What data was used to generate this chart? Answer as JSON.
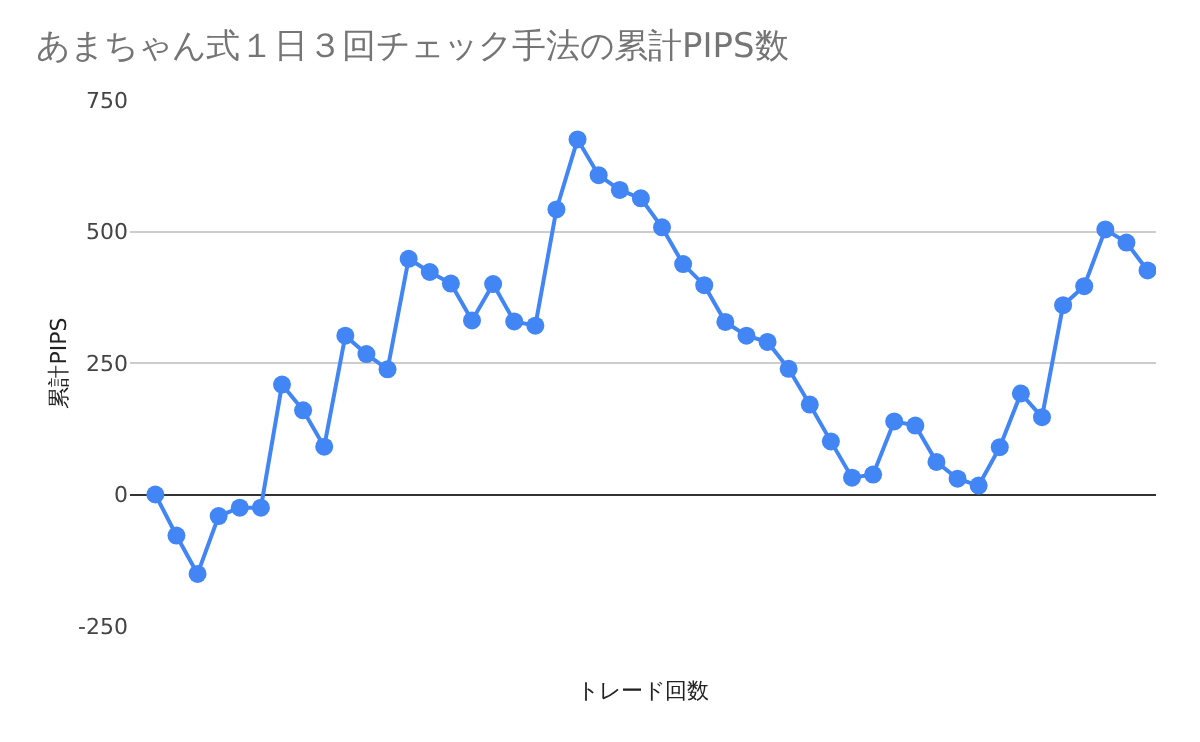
{
  "chart_data": {
    "type": "line",
    "title": "あまちゃん式１日３回チェック手法の累計PIPS数",
    "xlabel": "トレード回数",
    "ylabel": "累計PIPS",
    "categories": [
      null,
      null,
      null,
      null,
      null,
      null,
      null,
      null,
      null,
      null,
      null,
      null,
      null,
      null,
      null,
      null,
      null,
      null,
      null,
      null,
      null,
      null,
      null,
      null,
      null,
      null,
      null,
      null,
      null,
      null,
      null,
      null,
      null,
      null,
      null,
      null,
      null,
      null,
      null,
      null,
      null,
      null,
      null,
      null,
      null,
      null,
      null,
      null
    ],
    "series": [
      {
        "color": "#4285f4",
        "values": [
          0,
          -78,
          -151,
          -41,
          -25,
          -25,
          209,
          160,
          91,
          302,
          267,
          238,
          448,
          423,
          401,
          331,
          400,
          329,
          321,
          542,
          675,
          607,
          579,
          563,
          508,
          438,
          398,
          328,
          302,
          290,
          239,
          171,
          101,
          32,
          38,
          139,
          131,
          62,
          30,
          17,
          90,
          192,
          147,
          360,
          396,
          504,
          479,
          426
        ]
      }
    ],
    "ylim": [
      -250,
      750
    ],
    "yticks": [
      -250,
      0,
      250,
      500,
      750
    ],
    "grid": "y",
    "marker": "circle",
    "line_style": "solid",
    "tick_labels": "y"
  }
}
